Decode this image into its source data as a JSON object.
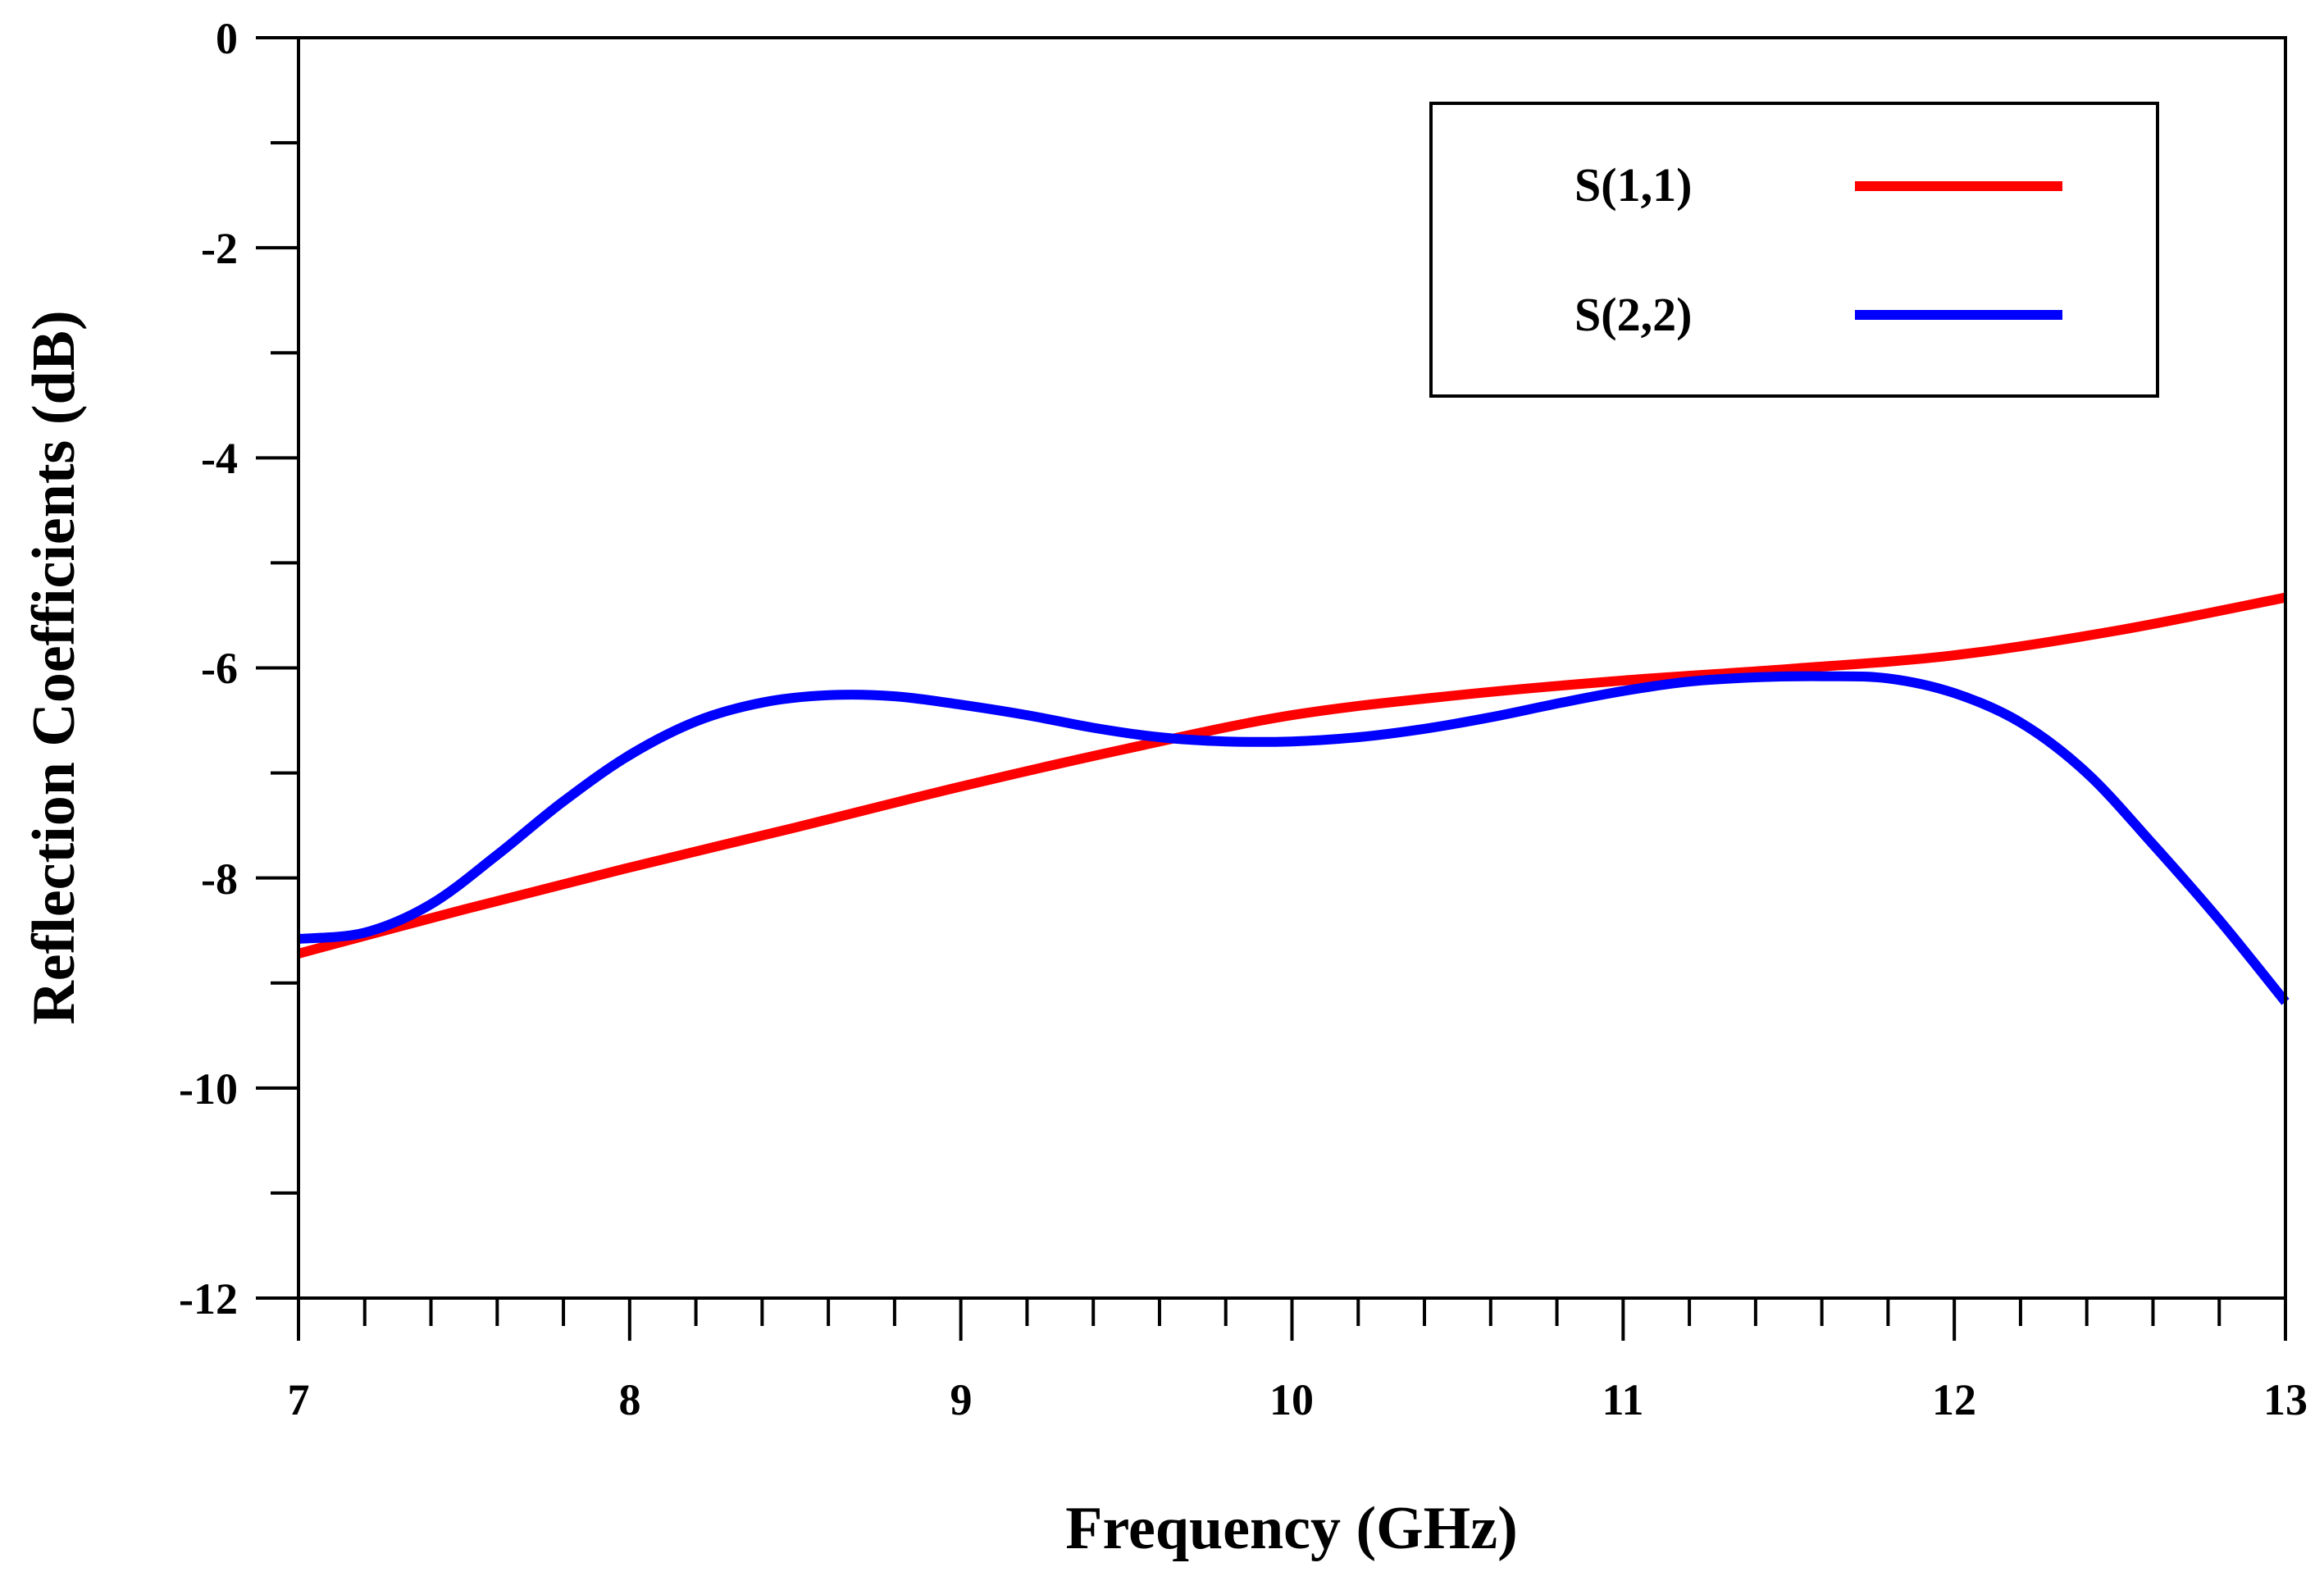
{
  "chart_data": {
    "type": "line",
    "title": "",
    "xlabel": "Frequency (GHz)",
    "ylabel": "Reflection Coefficients (dB)",
    "xlim": [
      7,
      13
    ],
    "ylim": [
      -12,
      0
    ],
    "x_ticks": [
      "7",
      "8",
      "9",
      "10",
      "11",
      "12",
      "13"
    ],
    "y_ticks": [
      "0",
      "-2",
      "-4",
      "-6",
      "-8",
      "-10",
      "-12"
    ],
    "grid": false,
    "legend_position": "top-right",
    "series": [
      {
        "name": "S(1,1)",
        "color": "#ff0000",
        "x": [
          7.0,
          7.5,
          8.0,
          8.5,
          9.0,
          9.5,
          10.0,
          10.5,
          11.0,
          11.5,
          12.0,
          12.5,
          13.0
        ],
        "y": [
          -8.72,
          -8.3,
          -7.9,
          -7.52,
          -7.13,
          -6.77,
          -6.45,
          -6.26,
          -6.12,
          -6.01,
          -5.88,
          -5.64,
          -5.33
        ]
      },
      {
        "name": "S(2,2)",
        "color": "#0000ff",
        "x": [
          7.0,
          7.2,
          7.4,
          7.6,
          7.8,
          8.0,
          8.2,
          8.4,
          8.6,
          8.8,
          9.0,
          9.2,
          9.4,
          9.6,
          9.8,
          10.0,
          10.2,
          10.4,
          10.6,
          10.8,
          11.0,
          11.2,
          11.4,
          11.6,
          11.8,
          12.0,
          12.2,
          12.4,
          12.6,
          12.8,
          13.0
        ],
        "y": [
          -8.58,
          -8.52,
          -8.25,
          -7.78,
          -7.27,
          -6.83,
          -6.51,
          -6.33,
          -6.26,
          -6.27,
          -6.35,
          -6.45,
          -6.57,
          -6.66,
          -6.7,
          -6.7,
          -6.66,
          -6.58,
          -6.47,
          -6.34,
          -6.22,
          -6.13,
          -6.09,
          -6.08,
          -6.1,
          -6.24,
          -6.52,
          -7.0,
          -7.68,
          -8.4,
          -9.18
        ]
      }
    ]
  }
}
